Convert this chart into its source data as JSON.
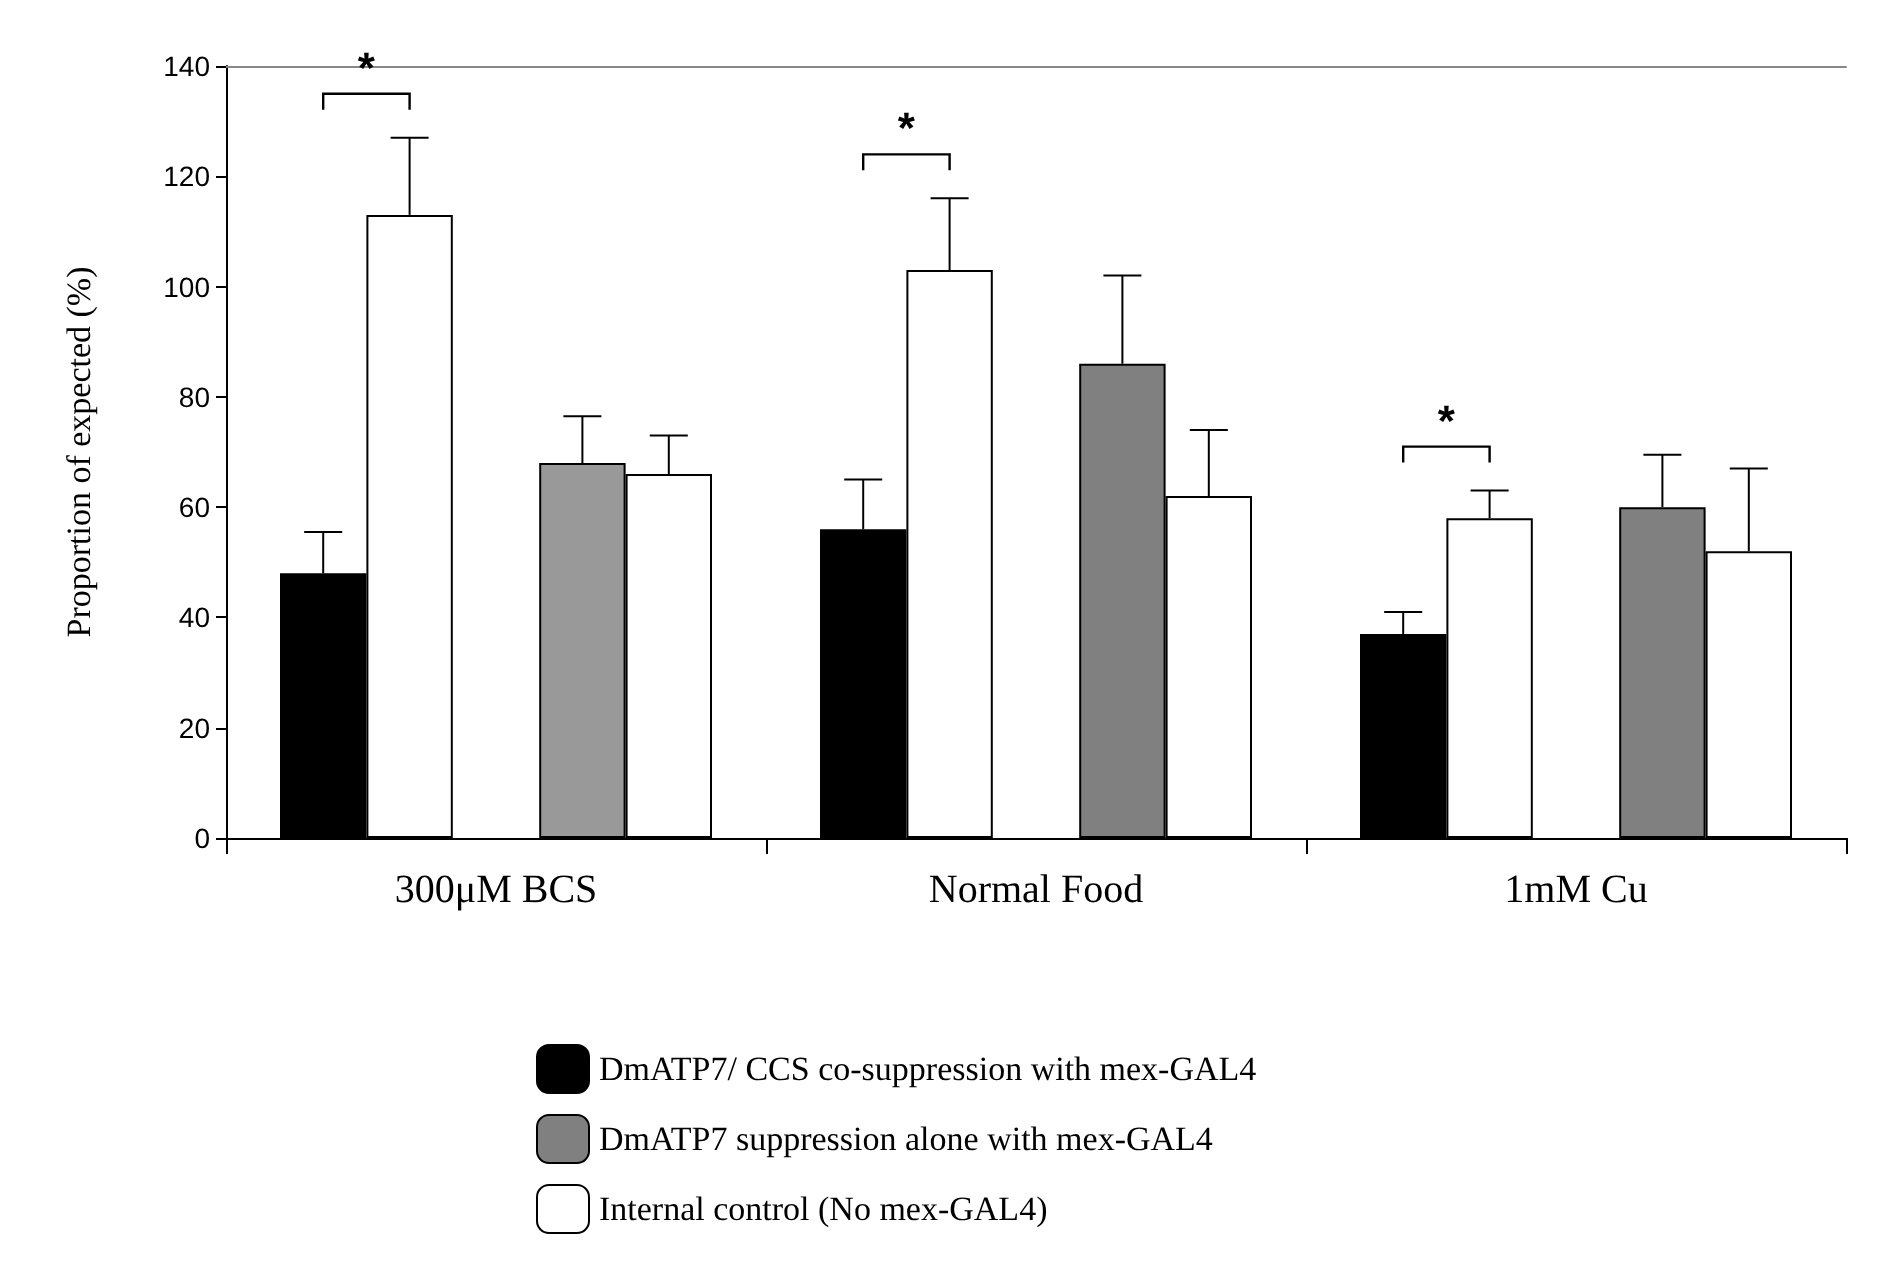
{
  "chart_data": {
    "type": "bar",
    "ylabel": "Proportion of expected (%)",
    "categories": [
      "300μM BCS",
      "Normal Food",
      "1mM Cu"
    ],
    "series": [
      {
        "name": "DmATP7/ CCS co-suppression with mex-GAL4",
        "color": "#000000",
        "values": [
          48,
          56,
          37
        ],
        "errors": [
          [
            48,
            55.5
          ],
          [
            56,
            65
          ],
          [
            37,
            41
          ]
        ]
      },
      {
        "name": "Internal control (No mex-GAL4)",
        "color": "#ffffff",
        "values": [
          113,
          103,
          58
        ],
        "errors": [
          [
            113,
            127
          ],
          [
            103,
            116
          ],
          [
            58,
            63
          ]
        ]
      },
      {
        "name": "DmATP7 suppression alone with mex-GAL4",
        "color": "#808080",
        "colors": [
          "#999999",
          "#808080",
          "#808080"
        ],
        "values": [
          68,
          86,
          60
        ],
        "errors": [
          [
            68,
            76.5
          ],
          [
            86,
            102
          ],
          [
            60,
            69.5
          ]
        ]
      },
      {
        "color": "#ffffff",
        "values": [
          66,
          62,
          52
        ],
        "errors": [
          [
            66,
            73
          ],
          [
            62,
            74
          ],
          [
            52,
            67
          ]
        ]
      }
    ],
    "ylim": [
      0,
      140
    ],
    "yticks": [
      0,
      20,
      40,
      60,
      80,
      100,
      120,
      140
    ],
    "grid": false,
    "legend": "bottom",
    "annotations": [
      "*",
      "*",
      "*"
    ]
  }
}
